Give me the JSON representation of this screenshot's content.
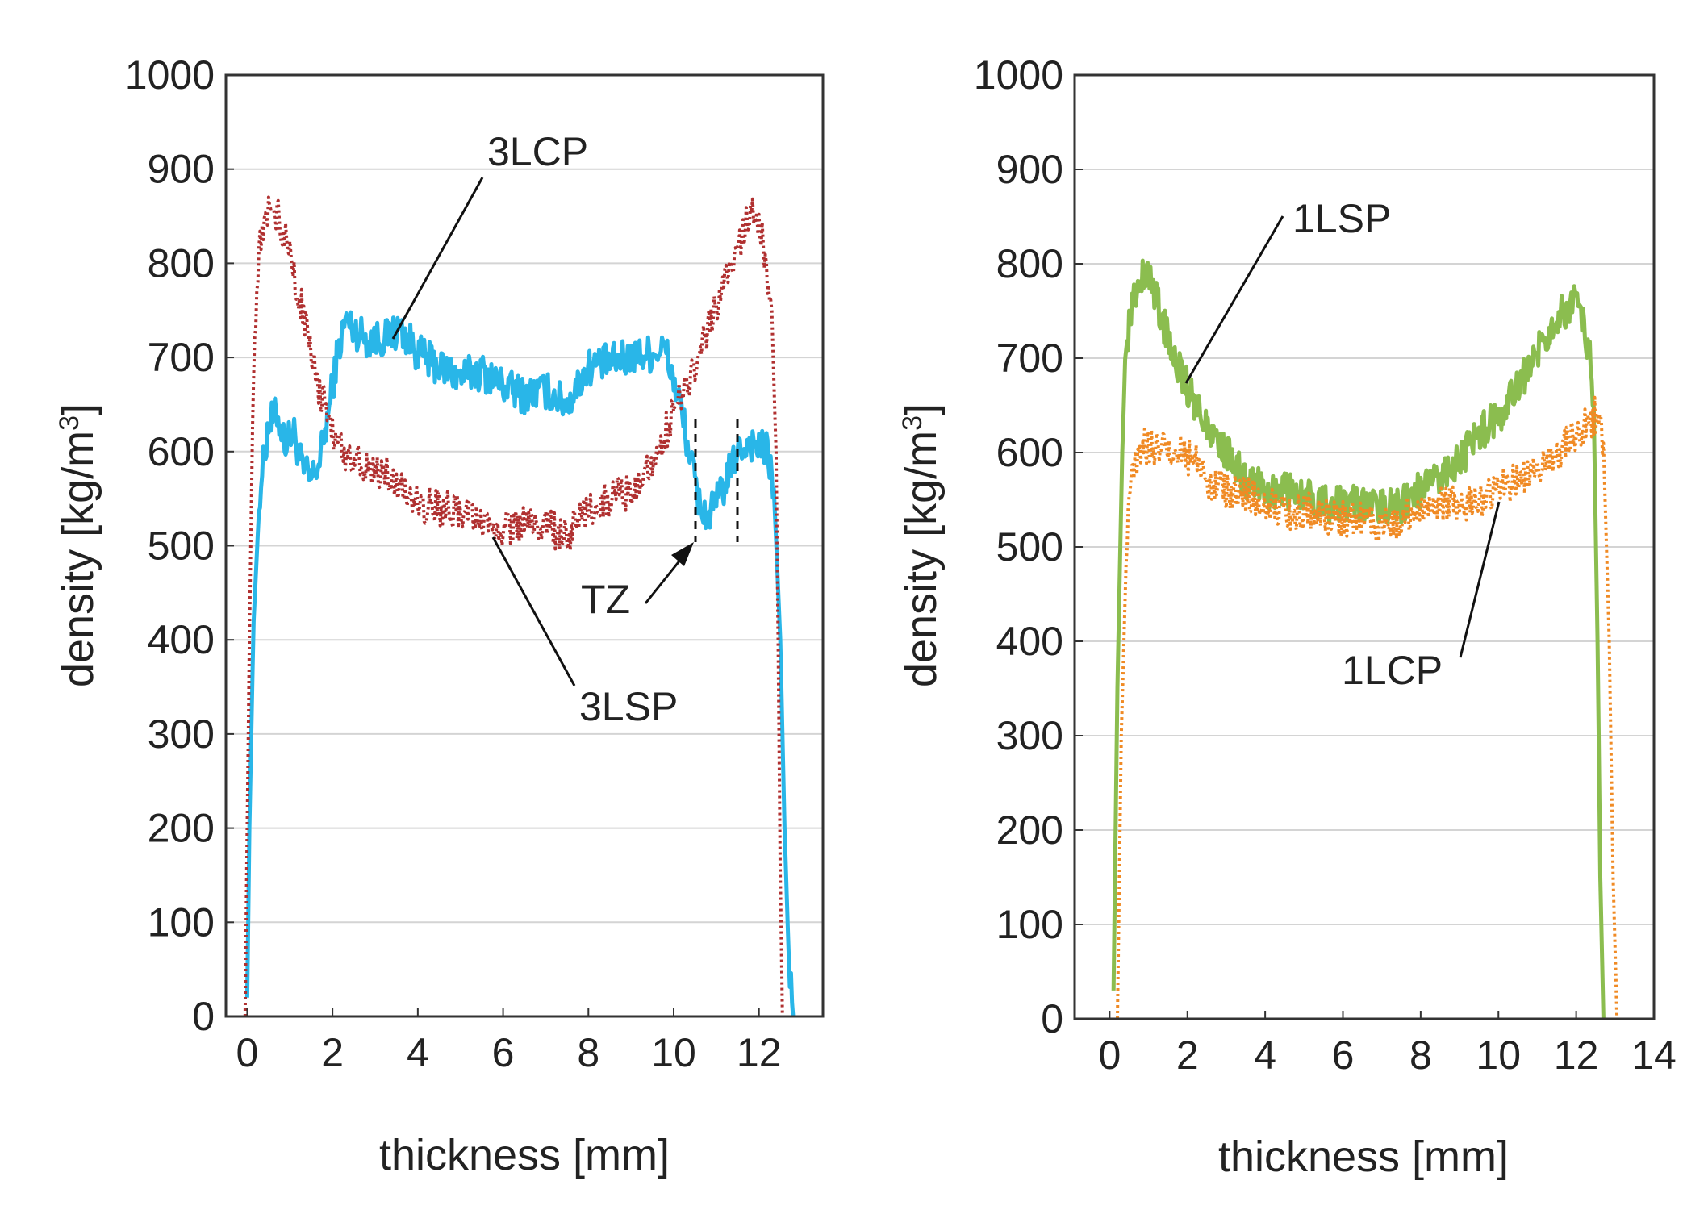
{
  "chart_data": [
    {
      "type": "line",
      "panel": "left",
      "xlabel": "thickness [mm]",
      "ylabel_main": "density [kg/m",
      "ylabel_sup": "3",
      "ylabel_close": "]",
      "xlim": [
        -0.5,
        13.5
      ],
      "ylim": [
        0,
        1000
      ],
      "xticks": [
        0,
        2,
        4,
        6,
        8,
        10,
        12
      ],
      "yticks": [
        0,
        100,
        200,
        300,
        400,
        500,
        600,
        700,
        800,
        900,
        1000
      ],
      "grid": "horizontal",
      "series": [
        {
          "name": "3LCP",
          "style": "solid",
          "color": "#29b6e8",
          "x": [
            0.0,
            0.05,
            0.15,
            0.3,
            0.5,
            0.7,
            0.9,
            1.1,
            1.3,
            1.5,
            1.7,
            1.9,
            2.1,
            2.3,
            2.5,
            2.8,
            3.2,
            3.6,
            4.0,
            4.5,
            5.0,
            5.5,
            6.0,
            6.5,
            7.0,
            7.5,
            8.0,
            8.5,
            9.0,
            9.5,
            9.8,
            10.0,
            10.2,
            10.4,
            10.6,
            10.8,
            11.0,
            11.2,
            11.5,
            11.8,
            12.0,
            12.2,
            12.35,
            12.5,
            12.6,
            12.7,
            12.8
          ],
          "values": [
            20,
            200,
            420,
            560,
            630,
            640,
            610,
            620,
            580,
            570,
            590,
            640,
            700,
            740,
            730,
            720,
            720,
            730,
            705,
            690,
            680,
            685,
            670,
            660,
            665,
            650,
            690,
            695,
            700,
            705,
            710,
            675,
            640,
            590,
            545,
            530,
            545,
            565,
            600,
            610,
            605,
            600,
            560,
            400,
            200,
            60,
            0
          ]
        },
        {
          "name": "3LSP",
          "style": "dotted",
          "color": "#b03030",
          "x": [
            -0.05,
            0.05,
            0.15,
            0.3,
            0.5,
            0.7,
            0.9,
            1.1,
            1.3,
            1.5,
            1.7,
            1.9,
            2.1,
            2.3,
            2.6,
            3.0,
            3.5,
            4.0,
            4.5,
            5.0,
            5.5,
            6.0,
            6.5,
            7.0,
            7.5,
            8.0,
            8.5,
            9.0,
            9.5,
            10.0,
            10.4,
            10.8,
            11.2,
            11.6,
            11.9,
            12.1,
            12.3,
            12.4,
            12.45,
            12.5,
            12.55
          ],
          "values": [
            0,
            400,
            700,
            820,
            855,
            850,
            830,
            790,
            750,
            700,
            660,
            640,
            610,
            600,
            590,
            580,
            570,
            545,
            540,
            535,
            520,
            515,
            525,
            520,
            510,
            535,
            550,
            560,
            590,
            640,
            680,
            730,
            780,
            830,
            860,
            820,
            750,
            600,
            400,
            150,
            0
          ]
        }
      ],
      "annotations": [
        {
          "text": "3LCP"
        },
        {
          "text": "3LSP"
        },
        {
          "text": "TZ"
        }
      ]
    },
    {
      "type": "line",
      "panel": "right",
      "xlabel": "thickness [mm]",
      "ylabel_main": "density [kg/m",
      "ylabel_sup": "3",
      "ylabel_close": "]",
      "xlim": [
        -0.9,
        14.0
      ],
      "ylim": [
        0,
        1000
      ],
      "xticks": [
        0,
        2,
        4,
        6,
        8,
        10,
        12,
        14
      ],
      "yticks": [
        0,
        100,
        200,
        300,
        400,
        500,
        600,
        700,
        800,
        900,
        1000
      ],
      "grid": "horizontal",
      "series": [
        {
          "name": "1LSP",
          "style": "solid",
          "color": "#8bbd4f",
          "x": [
            0.1,
            0.2,
            0.35,
            0.5,
            0.7,
            0.9,
            1.1,
            1.3,
            1.5,
            1.8,
            2.1,
            2.5,
            3.0,
            3.5,
            4.0,
            4.5,
            5.0,
            5.5,
            6.0,
            6.5,
            7.0,
            7.5,
            8.0,
            8.5,
            9.0,
            9.5,
            10.0,
            10.5,
            11.0,
            11.5,
            11.8,
            12.0,
            12.2,
            12.35,
            12.45,
            12.55,
            12.62,
            12.7
          ],
          "values": [
            30,
            350,
            650,
            740,
            775,
            790,
            775,
            750,
            720,
            690,
            660,
            630,
            600,
            570,
            560,
            560,
            555,
            545,
            545,
            545,
            545,
            545,
            560,
            575,
            590,
            620,
            640,
            670,
            705,
            740,
            755,
            760,
            740,
            700,
            650,
            400,
            150,
            0
          ]
        },
        {
          "name": "1LCP",
          "style": "dotted",
          "color": "#f08a24",
          "x": [
            0.2,
            0.3,
            0.45,
            0.6,
            0.8,
            1.0,
            1.3,
            1.6,
            1.9,
            2.2,
            2.6,
            3.0,
            3.5,
            4.0,
            4.5,
            5.0,
            5.5,
            6.0,
            6.5,
            7.0,
            7.5,
            8.0,
            8.5,
            9.0,
            9.5,
            10.0,
            10.5,
            11.0,
            11.5,
            12.0,
            12.3,
            12.5,
            12.7,
            12.85,
            12.95,
            13.05
          ],
          "values": [
            0,
            300,
            520,
            585,
            600,
            610,
            605,
            600,
            600,
            590,
            570,
            560,
            555,
            545,
            535,
            540,
            535,
            530,
            530,
            525,
            530,
            540,
            545,
            545,
            550,
            560,
            570,
            585,
            600,
            620,
            630,
            640,
            610,
            400,
            150,
            0
          ]
        }
      ],
      "annotations": [
        {
          "text": "1LSP"
        },
        {
          "text": "1LCP"
        }
      ]
    }
  ]
}
